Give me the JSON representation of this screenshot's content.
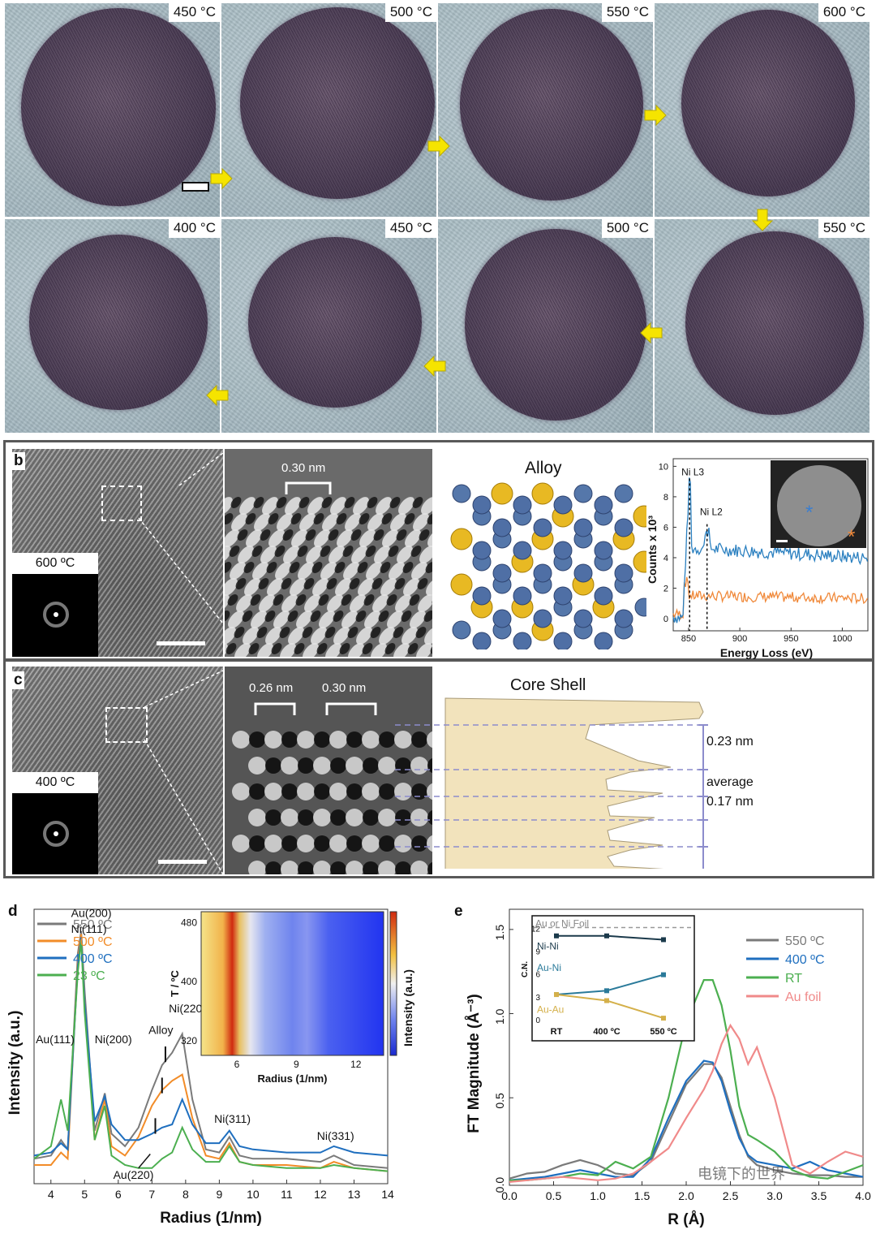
{
  "panel_a": {
    "letter": "a",
    "top_row": [
      "450 °C",
      "500 °C",
      "550 °C",
      "600 °C"
    ],
    "bottom_row": [
      "400 °C",
      "450 °C",
      "500 °C",
      "550 °C"
    ]
  },
  "panel_b": {
    "letter": "b",
    "fft_label": "600 ºC",
    "spacing_label": "0.30 nm",
    "model_title": "Alloy",
    "eels": {
      "y_axis_label": "Counts x 10³",
      "x_axis_label": "Energy Loss (eV)",
      "peak_l3": "Ni L3",
      "peak_l2": "Ni L2",
      "y_ticks": [
        "0",
        "2",
        "4",
        "6",
        "8",
        "10"
      ],
      "x_ticks": [
        "850",
        "900",
        "950",
        "1000"
      ]
    }
  },
  "panel_c": {
    "letter": "c",
    "fft_label": "400 ºC",
    "spacing_label_1": "0.26 nm",
    "spacing_label_2": "0.30 nm",
    "model_title": "Core Shell",
    "label_top": "0.23 nm",
    "label_avg_1": "average",
    "label_avg_2": "0.17 nm"
  },
  "panel_d": {
    "letter": "d",
    "x_label": "Radius (1/nm)",
    "y_label": "Intensity (a.u.)",
    "x_ticks": [
      "4",
      "5",
      "6",
      "7",
      "8",
      "9",
      "10",
      "11",
      "12",
      "13",
      "14"
    ],
    "legend": [
      {
        "label": "550 ºC",
        "color": "#7a7a7a"
      },
      {
        "label": "500 ºC",
        "color": "#f28c28"
      },
      {
        "label": "400 ºC",
        "color": "#1f6fbf"
      },
      {
        "label": "23 ºC",
        "color": "#4caf50"
      }
    ],
    "annotations": {
      "au111": "Au(111)",
      "au200": "Au(200)",
      "ni111": "Ni(111)",
      "ni200": "Ni(200)",
      "alloy": "Alloy",
      "ni220": "Ni(220)",
      "au220": "Au(220)",
      "ni311": "Ni(311)",
      "ni331": "Ni(331)"
    },
    "inset": {
      "y_label": "T / ºC",
      "x_label": "Radius (1/nm)",
      "y_ticks": [
        "320",
        "400",
        "480"
      ],
      "x_ticks": [
        "6",
        "9",
        "12"
      ],
      "colorbar_label": "Intensity (a.u.)"
    }
  },
  "panel_e": {
    "letter": "e",
    "x_label": "R (Å)",
    "y_label": "FT Magnitude (Å⁻³)",
    "x_ticks": [
      "0.0",
      "0.5",
      "1.0",
      "1.5",
      "2.0",
      "2.5",
      "3.0",
      "3.5",
      "4.0"
    ],
    "y_ticks": [
      "0.0",
      "0.5",
      "1.0",
      "1.5"
    ],
    "legend": [
      {
        "label": "550 ºC",
        "color": "#7a7a7a"
      },
      {
        "label": "400 ºC",
        "color": "#1f6fbf"
      },
      {
        "label": "RT",
        "color": "#4caf50"
      },
      {
        "label": "Au foil",
        "color": "#f08a8a"
      }
    ],
    "inset": {
      "y_label": "C.N.",
      "y_ticks": [
        "0",
        "3",
        "6",
        "9",
        "12"
      ],
      "x_ticks": [
        "RT",
        "400 ºC",
        "550 ºC"
      ],
      "ref_label": "Au or Ni Foil",
      "series": [
        {
          "name": "Ni-Ni",
          "values": [
            11.0,
            11.0,
            10.5
          ],
          "color": "#1b3a4b"
        },
        {
          "name": "Au-Ni",
          "values": [
            3.3,
            3.8,
            5.9
          ],
          "color": "#2a7a9a"
        },
        {
          "name": "Au-Au",
          "values": [
            3.3,
            2.5,
            0.2
          ],
          "color": "#d4b04a"
        }
      ]
    },
    "watermark": "电镜下的世界"
  },
  "chart_data": [
    {
      "type": "line",
      "title": "",
      "xlabel": "Radius (1/nm)",
      "ylabel": "Intensity (a.u.)",
      "xlim": [
        3.5,
        14
      ],
      "x": [
        3.5,
        4.0,
        4.3,
        4.5,
        4.8,
        4.9,
        5.0,
        5.3,
        5.6,
        5.8,
        6.2,
        6.6,
        7.0,
        7.3,
        7.6,
        7.9,
        8.2,
        8.6,
        9.0,
        9.3,
        9.6,
        10.0,
        11.0,
        12.0,
        12.4,
        13.0,
        14.0
      ],
      "series": [
        {
          "name": "550 ºC",
          "values": [
            2.6,
            2.7,
            3.2,
            2.9,
            9.2,
            9.9,
            8.0,
            3.5,
            4.7,
            3.4,
            3.0,
            3.6,
            4.8,
            5.6,
            6.0,
            6.6,
            4.5,
            2.9,
            2.8,
            3.3,
            2.7,
            2.6,
            2.6,
            2.5,
            2.7,
            2.4,
            2.3
          ]
        },
        {
          "name": "500 ºC",
          "values": [
            2.4,
            2.4,
            2.8,
            2.6,
            9.0,
            9.8,
            7.6,
            3.2,
            4.5,
            3.0,
            2.7,
            3.3,
            4.3,
            4.8,
            5.1,
            5.3,
            3.9,
            2.7,
            2.6,
            3.1,
            2.5,
            2.4,
            2.4,
            2.3,
            2.5,
            2.3,
            2.2
          ]
        },
        {
          "name": "400 ºC",
          "values": [
            2.7,
            2.8,
            3.1,
            2.9,
            8.8,
            9.7,
            7.6,
            3.8,
            4.6,
            3.7,
            3.2,
            3.2,
            3.4,
            3.6,
            3.7,
            4.5,
            3.7,
            3.1,
            3.1,
            3.5,
            3.0,
            2.9,
            2.8,
            2.8,
            3.0,
            2.8,
            2.7
          ]
        },
        {
          "name": "23 ºC",
          "values": [
            2.6,
            3.0,
            4.5,
            3.5,
            8.6,
            9.6,
            7.3,
            3.2,
            4.3,
            2.7,
            2.4,
            2.3,
            2.3,
            2.6,
            2.8,
            3.6,
            2.9,
            2.5,
            2.5,
            3.0,
            2.5,
            2.4,
            2.3,
            2.3,
            2.4,
            2.3,
            2.2
          ]
        }
      ]
    },
    {
      "type": "line",
      "title": "",
      "xlabel": "R (Å)",
      "ylabel": "FT Magnitude (Å⁻³)",
      "xlim": [
        0,
        4
      ],
      "ylim": [
        0,
        1.6
      ],
      "x": [
        0.0,
        0.2,
        0.4,
        0.6,
        0.8,
        1.0,
        1.2,
        1.4,
        1.6,
        1.8,
        2.0,
        2.2,
        2.3,
        2.4,
        2.5,
        2.6,
        2.7,
        2.8,
        3.0,
        3.2,
        3.4,
        3.6,
        3.8,
        4.0
      ],
      "series": [
        {
          "name": "550 ºC",
          "values": [
            0.02,
            0.05,
            0.06,
            0.1,
            0.13,
            0.1,
            0.05,
            0.04,
            0.12,
            0.35,
            0.58,
            0.7,
            0.7,
            0.62,
            0.45,
            0.28,
            0.15,
            0.1,
            0.07,
            0.05,
            0.04,
            0.04,
            0.03,
            0.03
          ]
        },
        {
          "name": "400 ºC",
          "values": [
            0.01,
            0.02,
            0.03,
            0.05,
            0.07,
            0.05,
            0.03,
            0.03,
            0.14,
            0.38,
            0.6,
            0.72,
            0.71,
            0.6,
            0.42,
            0.26,
            0.16,
            0.12,
            0.1,
            0.08,
            0.12,
            0.07,
            0.05,
            0.03
          ]
        },
        {
          "name": "RT",
          "values": [
            0.01,
            0.01,
            0.02,
            0.03,
            0.05,
            0.04,
            0.12,
            0.08,
            0.15,
            0.5,
            0.95,
            1.2,
            1.2,
            1.05,
            0.78,
            0.45,
            0.28,
            0.25,
            0.18,
            0.07,
            0.03,
            0.02,
            0.06,
            0.1
          ]
        },
        {
          "name": "Au foil",
          "values": [
            0.0,
            0.01,
            0.02,
            0.03,
            0.02,
            0.01,
            0.02,
            0.05,
            0.12,
            0.2,
            0.38,
            0.55,
            0.66,
            0.82,
            0.93,
            0.85,
            0.7,
            0.8,
            0.5,
            0.1,
            0.05,
            0.12,
            0.18,
            0.15
          ]
        }
      ]
    },
    {
      "type": "line",
      "title": "",
      "ylabel": "C.N.",
      "categories": [
        "RT",
        "400 ºC",
        "550 ºC"
      ],
      "ylim": [
        0,
        13
      ],
      "series": [
        {
          "name": "Ni-Ni",
          "values": [
            11.0,
            11.0,
            10.5
          ]
        },
        {
          "name": "Au-Ni",
          "values": [
            3.3,
            3.8,
            5.9
          ]
        },
        {
          "name": "Au-Au",
          "values": [
            3.3,
            2.5,
            0.2
          ]
        }
      ]
    }
  ]
}
